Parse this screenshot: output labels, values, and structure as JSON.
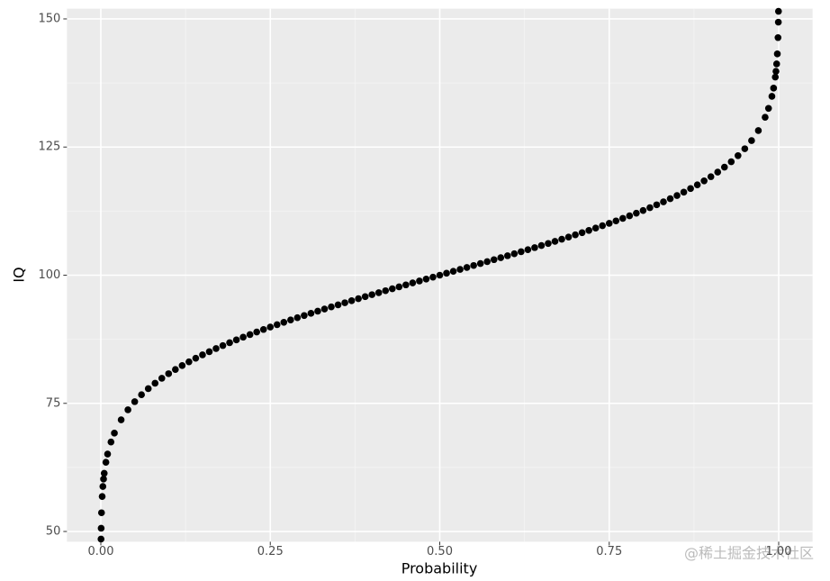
{
  "chart_data": {
    "type": "scatter",
    "x_label": "Probability",
    "y_label": "IQ",
    "watermark": "@稀土掘金技术社区",
    "xlim": [
      -0.05,
      1.05
    ],
    "ylim": [
      48,
      152
    ],
    "xticks": [
      {
        "value": 0,
        "label": "0.00"
      },
      0.25,
      {
        "value": 0.5,
        "label": "0.50"
      },
      0.75,
      {
        "value": 1,
        "label": "1.00"
      }
    ],
    "yticks": [
      50,
      75,
      100,
      125,
      150
    ],
    "grid": true,
    "minor_grid": true,
    "series": [
      {
        "color": "#000000",
        "x": [
          0.0003,
          0.0005,
          0.001,
          0.002,
          0.003,
          0.004,
          0.005,
          0.0075,
          0.01,
          0.015,
          0.02,
          0.03,
          0.04,
          0.05,
          0.06,
          0.07,
          0.08,
          0.09,
          0.1,
          0.11,
          0.12,
          0.13,
          0.14,
          0.15,
          0.16,
          0.17,
          0.18,
          0.19,
          0.2,
          0.21,
          0.22,
          0.23,
          0.24,
          0.25,
          0.26,
          0.27,
          0.28,
          0.29,
          0.3,
          0.31,
          0.32,
          0.33,
          0.34,
          0.35,
          0.36,
          0.37,
          0.38,
          0.39,
          0.4,
          0.41,
          0.42,
          0.43,
          0.44,
          0.45,
          0.46,
          0.47,
          0.48,
          0.49,
          0.5,
          0.51,
          0.52,
          0.53,
          0.54,
          0.55,
          0.56,
          0.57,
          0.58,
          0.59,
          0.6,
          0.61,
          0.62,
          0.63,
          0.64,
          0.65,
          0.66,
          0.67,
          0.68,
          0.69,
          0.7,
          0.71,
          0.72,
          0.73,
          0.74,
          0.75,
          0.76,
          0.77,
          0.78,
          0.79,
          0.8,
          0.81,
          0.82,
          0.83,
          0.84,
          0.85,
          0.86,
          0.87,
          0.88,
          0.89,
          0.9,
          0.91,
          0.92,
          0.93,
          0.94,
          0.95,
          0.96,
          0.97,
          0.98,
          0.985,
          0.99,
          0.9925,
          0.995,
          0.996,
          0.997,
          0.998,
          0.999,
          0.9995,
          0.9997
        ],
        "values": [
          48.52,
          50.64,
          53.65,
          56.83,
          58.78,
          60.22,
          61.36,
          63.51,
          65.11,
          67.45,
          69.19,
          71.79,
          73.74,
          75.33,
          76.68,
          77.86,
          78.92,
          79.89,
          80.78,
          81.6,
          82.37,
          83.1,
          83.8,
          84.45,
          85.08,
          85.69,
          86.27,
          86.83,
          87.38,
          87.9,
          88.42,
          88.92,
          89.41,
          89.88,
          90.35,
          90.81,
          91.26,
          91.7,
          92.13,
          92.56,
          92.98,
          93.4,
          93.81,
          94.22,
          94.62,
          95.02,
          95.42,
          95.81,
          96.2,
          96.59,
          96.97,
          97.35,
          97.73,
          98.11,
          98.49,
          98.87,
          99.25,
          99.62,
          100,
          100.38,
          100.75,
          101.13,
          101.51,
          101.89,
          102.27,
          102.65,
          103.03,
          103.41,
          103.8,
          104.19,
          104.58,
          104.98,
          105.38,
          105.78,
          106.19,
          106.6,
          107.02,
          107.44,
          107.87,
          108.3,
          108.74,
          109.19,
          109.65,
          110.12,
          110.59,
          111.08,
          111.58,
          112.1,
          112.62,
          113.17,
          113.73,
          114.31,
          114.92,
          115.55,
          116.2,
          116.9,
          117.63,
          118.4,
          119.22,
          120.11,
          121.08,
          122.14,
          123.32,
          124.67,
          126.26,
          128.21,
          130.81,
          132.55,
          134.89,
          136.49,
          138.64,
          139.78,
          141.22,
          143.17,
          146.35,
          149.36,
          151.48
        ]
      }
    ]
  }
}
